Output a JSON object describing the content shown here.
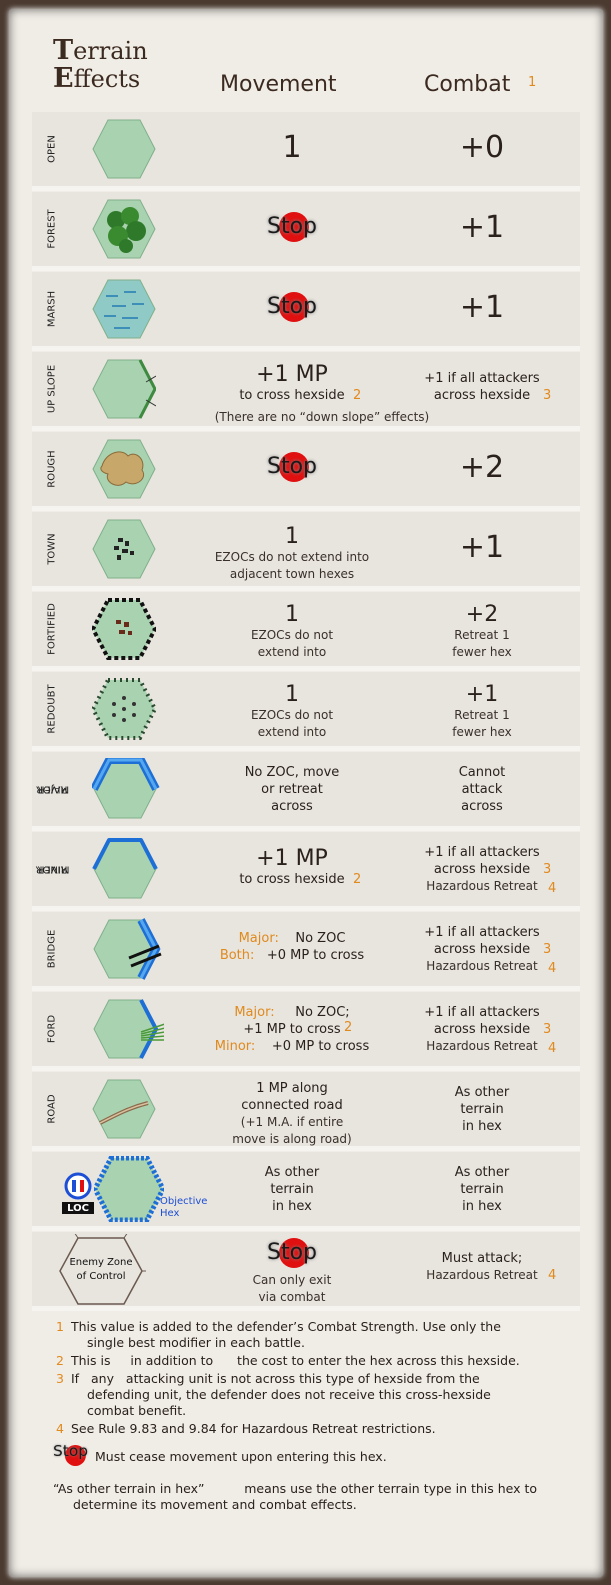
{
  "header": {
    "title_cap1": "T",
    "title_rest1": "errain",
    "title_cap2": "E",
    "title_rest2": "ffects",
    "movement": "Movement",
    "combat": "Combat",
    "combat_fn": "1"
  },
  "stop_label": "Stop",
  "rows": {
    "open": {
      "label": "OPEN",
      "move": "1",
      "combat": "+0"
    },
    "forest": {
      "label": "FOREST",
      "combat": "+1"
    },
    "marsh": {
      "label": "MARSH",
      "combat": "+1"
    },
    "upslope": {
      "label": "UP SLOPE",
      "move_big": "+1  MP",
      "move_sub": "to cross hexside",
      "move_fn": "2",
      "combat_l1": "+1 if all attackers",
      "combat_l2": "across hexside",
      "combat_fn": "3",
      "note": "(There are no “down slope” effects)"
    },
    "rough": {
      "label": "ROUGH",
      "combat": "+2"
    },
    "town": {
      "label": "TOWN",
      "move": "1",
      "move_l1": "EZOCs do not extend into",
      "move_l2": "adjacent      town hexes",
      "combat": "+1"
    },
    "fortified": {
      "label": "FORTIFIED",
      "move": "1",
      "move_l1": "EZOCs do not",
      "move_l2": "extend into",
      "combat": "+2",
      "combat_l1": "Retreat 1",
      "combat_l2": "fewer hex"
    },
    "redoubt": {
      "label": "REDOUBT",
      "move": "1",
      "move_l1": "EZOCs do not",
      "move_l2": "extend into",
      "combat": "+1",
      "combat_l1": "Retreat 1",
      "combat_l2": "fewer hex"
    },
    "major_river": {
      "label1": "MAJOR",
      "label2": "RIVER",
      "move_l1": "No ZOC, move",
      "move_l2": "or retreat",
      "move_l3": "across",
      "combat_l1": "Cannot",
      "combat_l2": "attack",
      "combat_l3": "across"
    },
    "minor_river": {
      "label1": "MINOR",
      "label2": "RIVER",
      "move_big": "+1  MP",
      "move_sub": "to cross hexside",
      "move_fn": "2",
      "combat_l1": "+1 if all attackers",
      "combat_l2": "across hexside",
      "combat_l3": "Hazardous Retreat",
      "fn3": "3",
      "fn4": "4"
    },
    "bridge": {
      "label": "BRIDGE",
      "major_k": "Major:",
      "major_v": "No ZOC",
      "both_k": "Both:",
      "both_v": "+0 MP to cross",
      "combat_l1": "+1 if all attackers",
      "combat_l2": "across hexside",
      "combat_l3": "Hazardous Retreat",
      "fn3": "3",
      "fn4": "4"
    },
    "ford": {
      "label": "FORD",
      "major_k": "Major:",
      "major_v": "No ZOC;",
      "mid": "+1 MP to cross",
      "minor_k": "Minor:",
      "minor_v": "+0 MP to cross",
      "move_fn": "2",
      "combat_l1": "+1 if all attackers",
      "combat_l2": "across hexside",
      "combat_l3": "Hazardous Retreat",
      "fn3": "3",
      "fn4": "4"
    },
    "road": {
      "label": "ROAD",
      "move_l1": "1 MP along",
      "move_l2": "connected road",
      "move_l3": "(+1 M.A. if entire",
      "move_l4": "move is along road)",
      "combat_l1": "As other",
      "combat_l2": "terrain",
      "combat_l3": "in hex"
    },
    "objective": {
      "loc": "LOC",
      "obj1": "Objective",
      "obj2": "Hex",
      "move_l1": "As other",
      "move_l2": "terrain",
      "move_l3": "in hex",
      "combat_l1": "As other",
      "combat_l2": "terrain",
      "combat_l3": "in hex"
    },
    "ezoc": {
      "label1": "Enemy Zone",
      "label2": "of Control",
      "move_l1": "Can only exit",
      "move_l2": "via combat",
      "combat_l1": "Must attack;",
      "combat_l2": "Hazardous Retreat",
      "fn4": "4"
    }
  },
  "notes": {
    "n1": "1",
    "t1a": "This value is added to the defender’s Combat Strength. Use only the",
    "t1b": "single best modifier in each battle.",
    "n2": "2",
    "t2": "This is     in addition to      the cost to enter the hex across this hexside.",
    "n3": "3",
    "t3a": "If   any   attacking unit is not across this type of hexside from the",
    "t3b": "defending unit, the defender does not receive this cross-hexside",
    "t3c": "combat benefit.",
    "n4": "4",
    "t4": "See Rule 9.83 and 9.84 for Hazardous Retreat restrictions.",
    "stop_text": "Must cease movement upon entering this hex.",
    "other_a": "“As other terrain in hex”          means use the other terrain type in this hex to",
    "other_b": "determine its movement and combat effects."
  },
  "colors": {
    "hex_green": "#a9d3b0",
    "stop_red": "#e01010",
    "river_blue": "#1d6fd6",
    "accent_orange": "#e08a1e"
  }
}
